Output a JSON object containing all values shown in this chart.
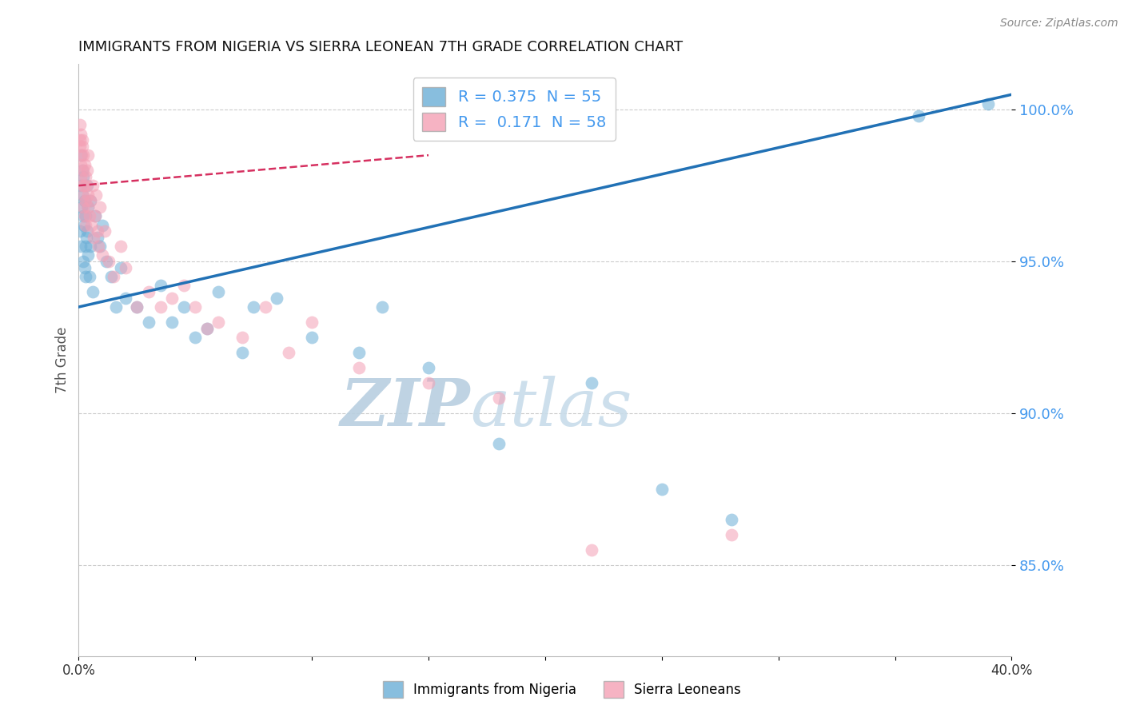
{
  "title": "IMMIGRANTS FROM NIGERIA VS SIERRA LEONEAN 7TH GRADE CORRELATION CHART",
  "source_text": "Source: ZipAtlas.com",
  "ylabel": "7th Grade",
  "xlabel": "",
  "xlim": [
    0.0,
    40.0
  ],
  "ylim": [
    82.0,
    101.5
  ],
  "yticks": [
    85.0,
    90.0,
    95.0,
    100.0
  ],
  "ytick_labels": [
    "85.0%",
    "90.0%",
    "95.0%",
    "100.0%"
  ],
  "xticks": [
    0.0,
    5.0,
    10.0,
    15.0,
    20.0,
    25.0,
    30.0,
    35.0,
    40.0
  ],
  "xtick_labels": [
    "0.0%",
    "",
    "",
    "",
    "",
    "",
    "",
    "",
    "40.0%"
  ],
  "legend_blue_label": "Immigrants from Nigeria",
  "legend_pink_label": "Sierra Leoneans",
  "R_blue": 0.375,
  "N_blue": 55,
  "R_pink": 0.171,
  "N_pink": 58,
  "blue_color": "#6baed6",
  "pink_color": "#f4a0b5",
  "blue_line_color": "#2171b5",
  "pink_line_color": "#d63060",
  "watermark_zip": "ZIP",
  "watermark_atlas": "atlas",
  "watermark_color": "#ccdded",
  "background_color": "#ffffff",
  "nigeria_x": [
    0.05,
    0.08,
    0.1,
    0.1,
    0.12,
    0.15,
    0.15,
    0.18,
    0.2,
    0.2,
    0.22,
    0.25,
    0.25,
    0.28,
    0.3,
    0.3,
    0.32,
    0.35,
    0.35,
    0.4,
    0.4,
    0.45,
    0.5,
    0.5,
    0.6,
    0.7,
    0.8,
    0.9,
    1.0,
    1.2,
    1.4,
    1.6,
    1.8,
    2.0,
    2.5,
    3.0,
    3.5,
    4.0,
    4.5,
    5.0,
    5.5,
    6.0,
    7.0,
    7.5,
    8.5,
    10.0,
    12.0,
    13.0,
    15.0,
    18.0,
    22.0,
    25.0,
    28.0,
    36.0,
    39.0
  ],
  "nigeria_y": [
    96.0,
    97.5,
    95.5,
    98.5,
    96.8,
    97.2,
    98.0,
    96.5,
    95.0,
    97.8,
    96.2,
    94.8,
    97.0,
    95.5,
    94.5,
    96.5,
    95.8,
    96.0,
    97.5,
    95.2,
    96.8,
    94.5,
    95.5,
    97.0,
    94.0,
    96.5,
    95.8,
    95.5,
    96.2,
    95.0,
    94.5,
    93.5,
    94.8,
    93.8,
    93.5,
    93.0,
    94.2,
    93.0,
    93.5,
    92.5,
    92.8,
    94.0,
    92.0,
    93.5,
    93.8,
    92.5,
    92.0,
    93.5,
    91.5,
    89.0,
    91.0,
    87.5,
    86.5,
    99.8,
    100.2
  ],
  "sierra_x": [
    0.05,
    0.05,
    0.07,
    0.08,
    0.1,
    0.1,
    0.12,
    0.15,
    0.15,
    0.15,
    0.18,
    0.18,
    0.2,
    0.2,
    0.22,
    0.25,
    0.25,
    0.28,
    0.3,
    0.3,
    0.32,
    0.35,
    0.38,
    0.4,
    0.4,
    0.45,
    0.5,
    0.55,
    0.6,
    0.65,
    0.7,
    0.75,
    0.8,
    0.85,
    0.9,
    1.0,
    1.1,
    1.3,
    1.5,
    1.8,
    2.0,
    2.5,
    3.0,
    3.5,
    4.0,
    4.5,
    5.0,
    5.5,
    6.0,
    7.0,
    8.0,
    9.0,
    10.0,
    12.0,
    15.0,
    18.0,
    22.0,
    28.0
  ],
  "sierra_y": [
    99.5,
    98.8,
    99.0,
    98.2,
    99.2,
    97.8,
    98.5,
    97.5,
    98.8,
    99.0,
    97.2,
    98.5,
    96.8,
    98.0,
    97.5,
    98.2,
    96.5,
    97.0,
    97.8,
    96.2,
    97.5,
    98.0,
    96.8,
    97.2,
    98.5,
    96.5,
    97.0,
    96.2,
    97.5,
    95.8,
    96.5,
    97.2,
    96.0,
    95.5,
    96.8,
    95.2,
    96.0,
    95.0,
    94.5,
    95.5,
    94.8,
    93.5,
    94.0,
    93.5,
    93.8,
    94.2,
    93.5,
    92.8,
    93.0,
    92.5,
    93.5,
    92.0,
    93.0,
    91.5,
    91.0,
    90.5,
    85.5,
    86.0
  ],
  "blue_trendline_x0": 0.0,
  "blue_trendline_y0": 93.5,
  "blue_trendline_x1": 40.0,
  "blue_trendline_y1": 100.5,
  "pink_trendline_x0": 0.0,
  "pink_trendline_y0": 97.5,
  "pink_trendline_x1": 15.0,
  "pink_trendline_y1": 98.5
}
